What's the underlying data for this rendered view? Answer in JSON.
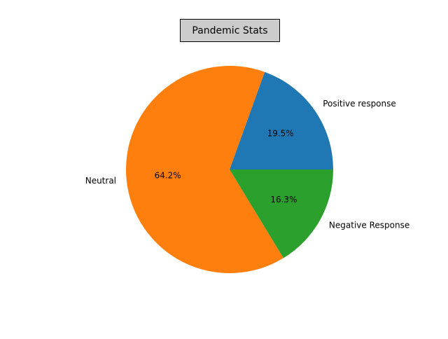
{
  "chart_data": {
    "type": "pie",
    "title": "Pandemic Stats",
    "categories": [
      "Positive response",
      "Neutral",
      "Negative Response"
    ],
    "values": [
      19.5,
      64.2,
      16.3
    ],
    "percent_labels": [
      "19.5%",
      "64.2%",
      "16.3%"
    ],
    "colors": [
      "#1f77b4",
      "#ff7f0e",
      "#2ca02c"
    ],
    "start_angle_deg": 0,
    "direction": "counterclockwise",
    "legend": "none"
  }
}
